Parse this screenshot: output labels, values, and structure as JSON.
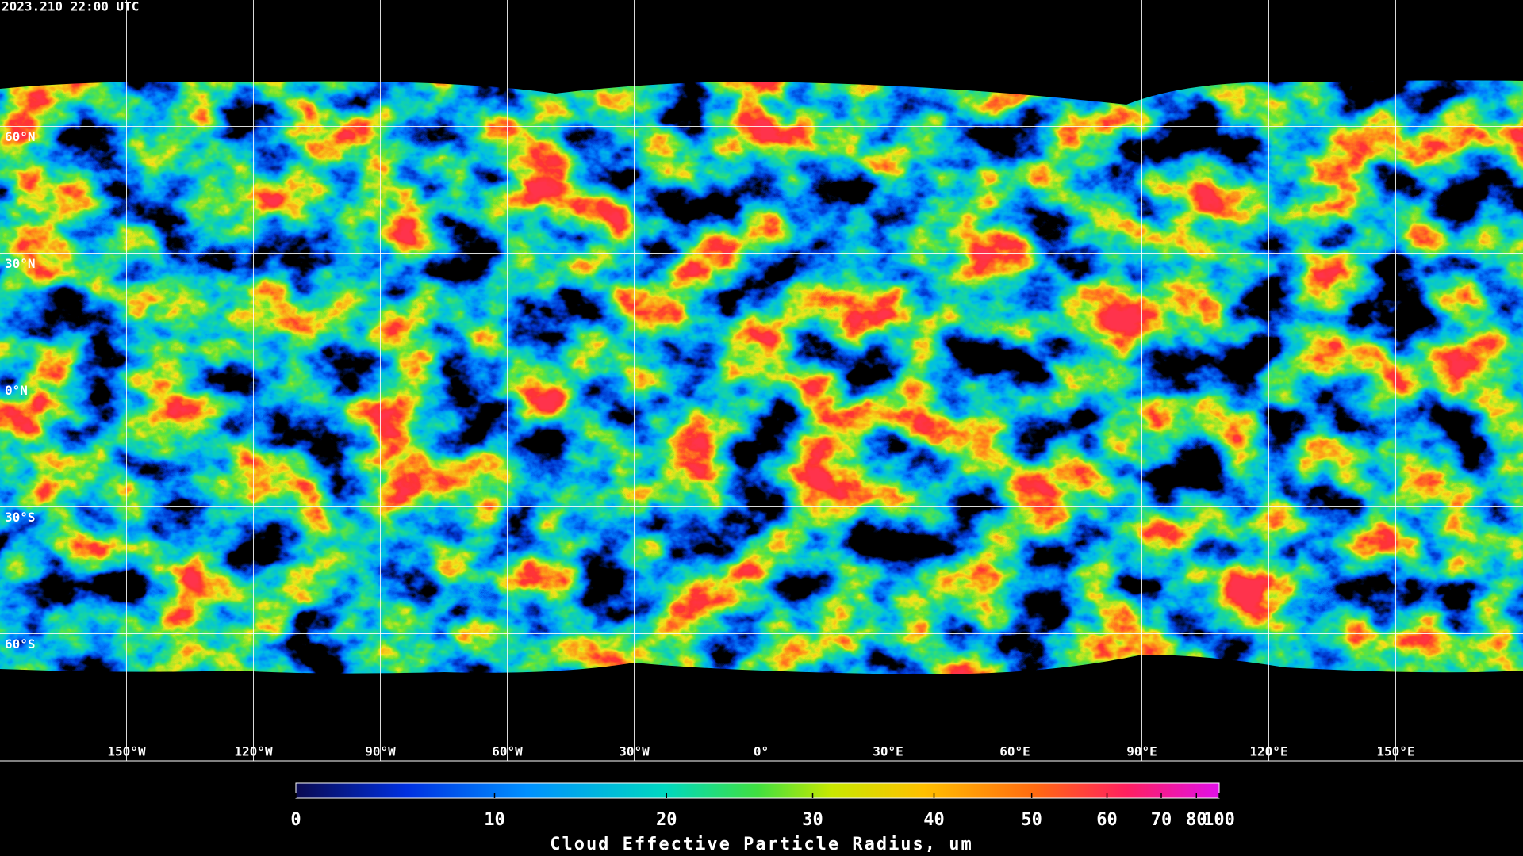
{
  "header": {
    "timestamp": "2023.210 22:00 UTC"
  },
  "map": {
    "lon_labels": [
      "150°W",
      "120°W",
      "90°W",
      "60°W",
      "30°W",
      "0°",
      "30°E",
      "60°E",
      "90°E",
      "120°E",
      "150°E"
    ],
    "lat_labels": [
      "60°N",
      "30°N",
      "0°N",
      "30°S",
      "60°S"
    ]
  },
  "colorbar": {
    "ticks": [
      0,
      10,
      20,
      30,
      40,
      50,
      60,
      70,
      80,
      100
    ],
    "label": "Cloud Effective Particle Radius, um"
  }
}
